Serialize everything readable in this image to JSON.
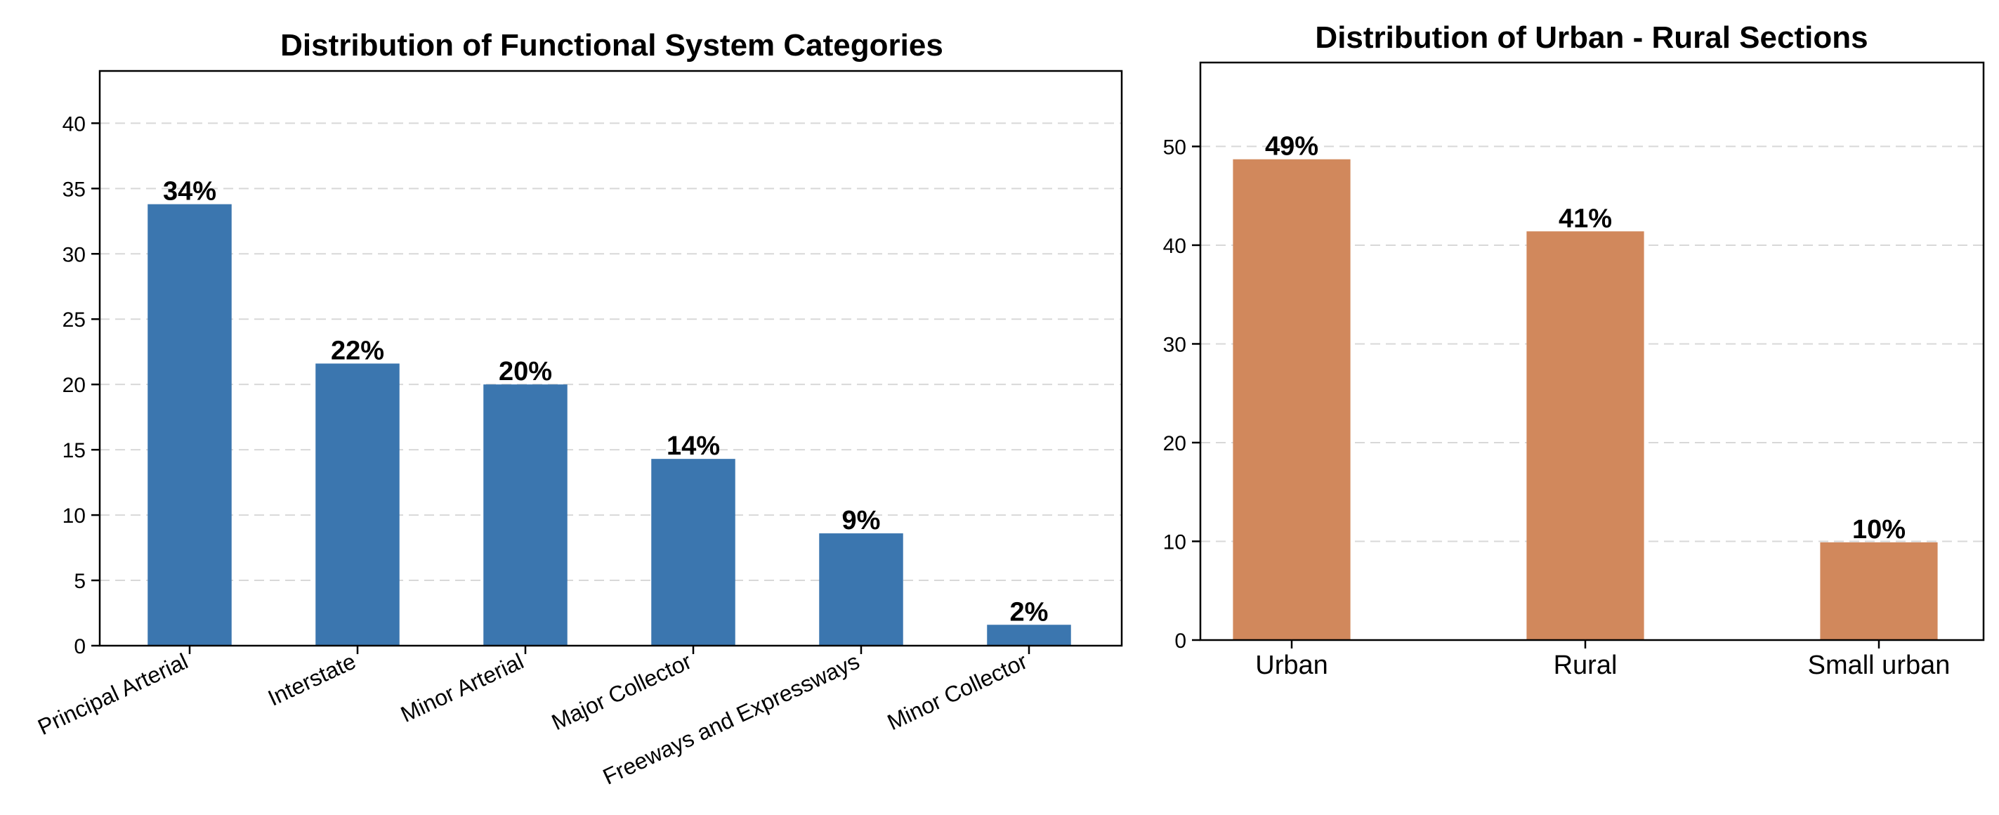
{
  "chart_data": [
    {
      "type": "bar",
      "title": "Distribution of Functional System Categories",
      "xlabel": "",
      "ylabel": "",
      "categories": [
        "Principal Arterial",
        "Interstate",
        "Minor Arterial",
        "Major Collector",
        "Freeways and Expressways",
        "Minor Collector"
      ],
      "values": [
        33.8,
        21.6,
        20.0,
        14.3,
        8.6,
        1.6
      ],
      "data_labels": [
        "34%",
        "22%",
        "20%",
        "14%",
        "9%",
        "2%"
      ],
      "ylim": [
        0,
        44
      ],
      "yticks": [
        0,
        5,
        10,
        15,
        20,
        25,
        30,
        35,
        40
      ],
      "color": "#3b76af",
      "grid": "y-dashed",
      "xtick_rotation": 25
    },
    {
      "type": "bar",
      "title": "Distribution of Urban - Rural Sections",
      "xlabel": "",
      "ylabel": "",
      "categories": [
        "Urban",
        "Rural",
        "Small urban"
      ],
      "values": [
        48.7,
        41.4,
        9.9
      ],
      "data_labels": [
        "49%",
        "41%",
        "10%"
      ],
      "ylim": [
        0,
        58.5
      ],
      "yticks": [
        0,
        10,
        20,
        30,
        40,
        50
      ],
      "color": "#d1885c",
      "grid": "y-dashed",
      "xtick_rotation": 0
    }
  ]
}
